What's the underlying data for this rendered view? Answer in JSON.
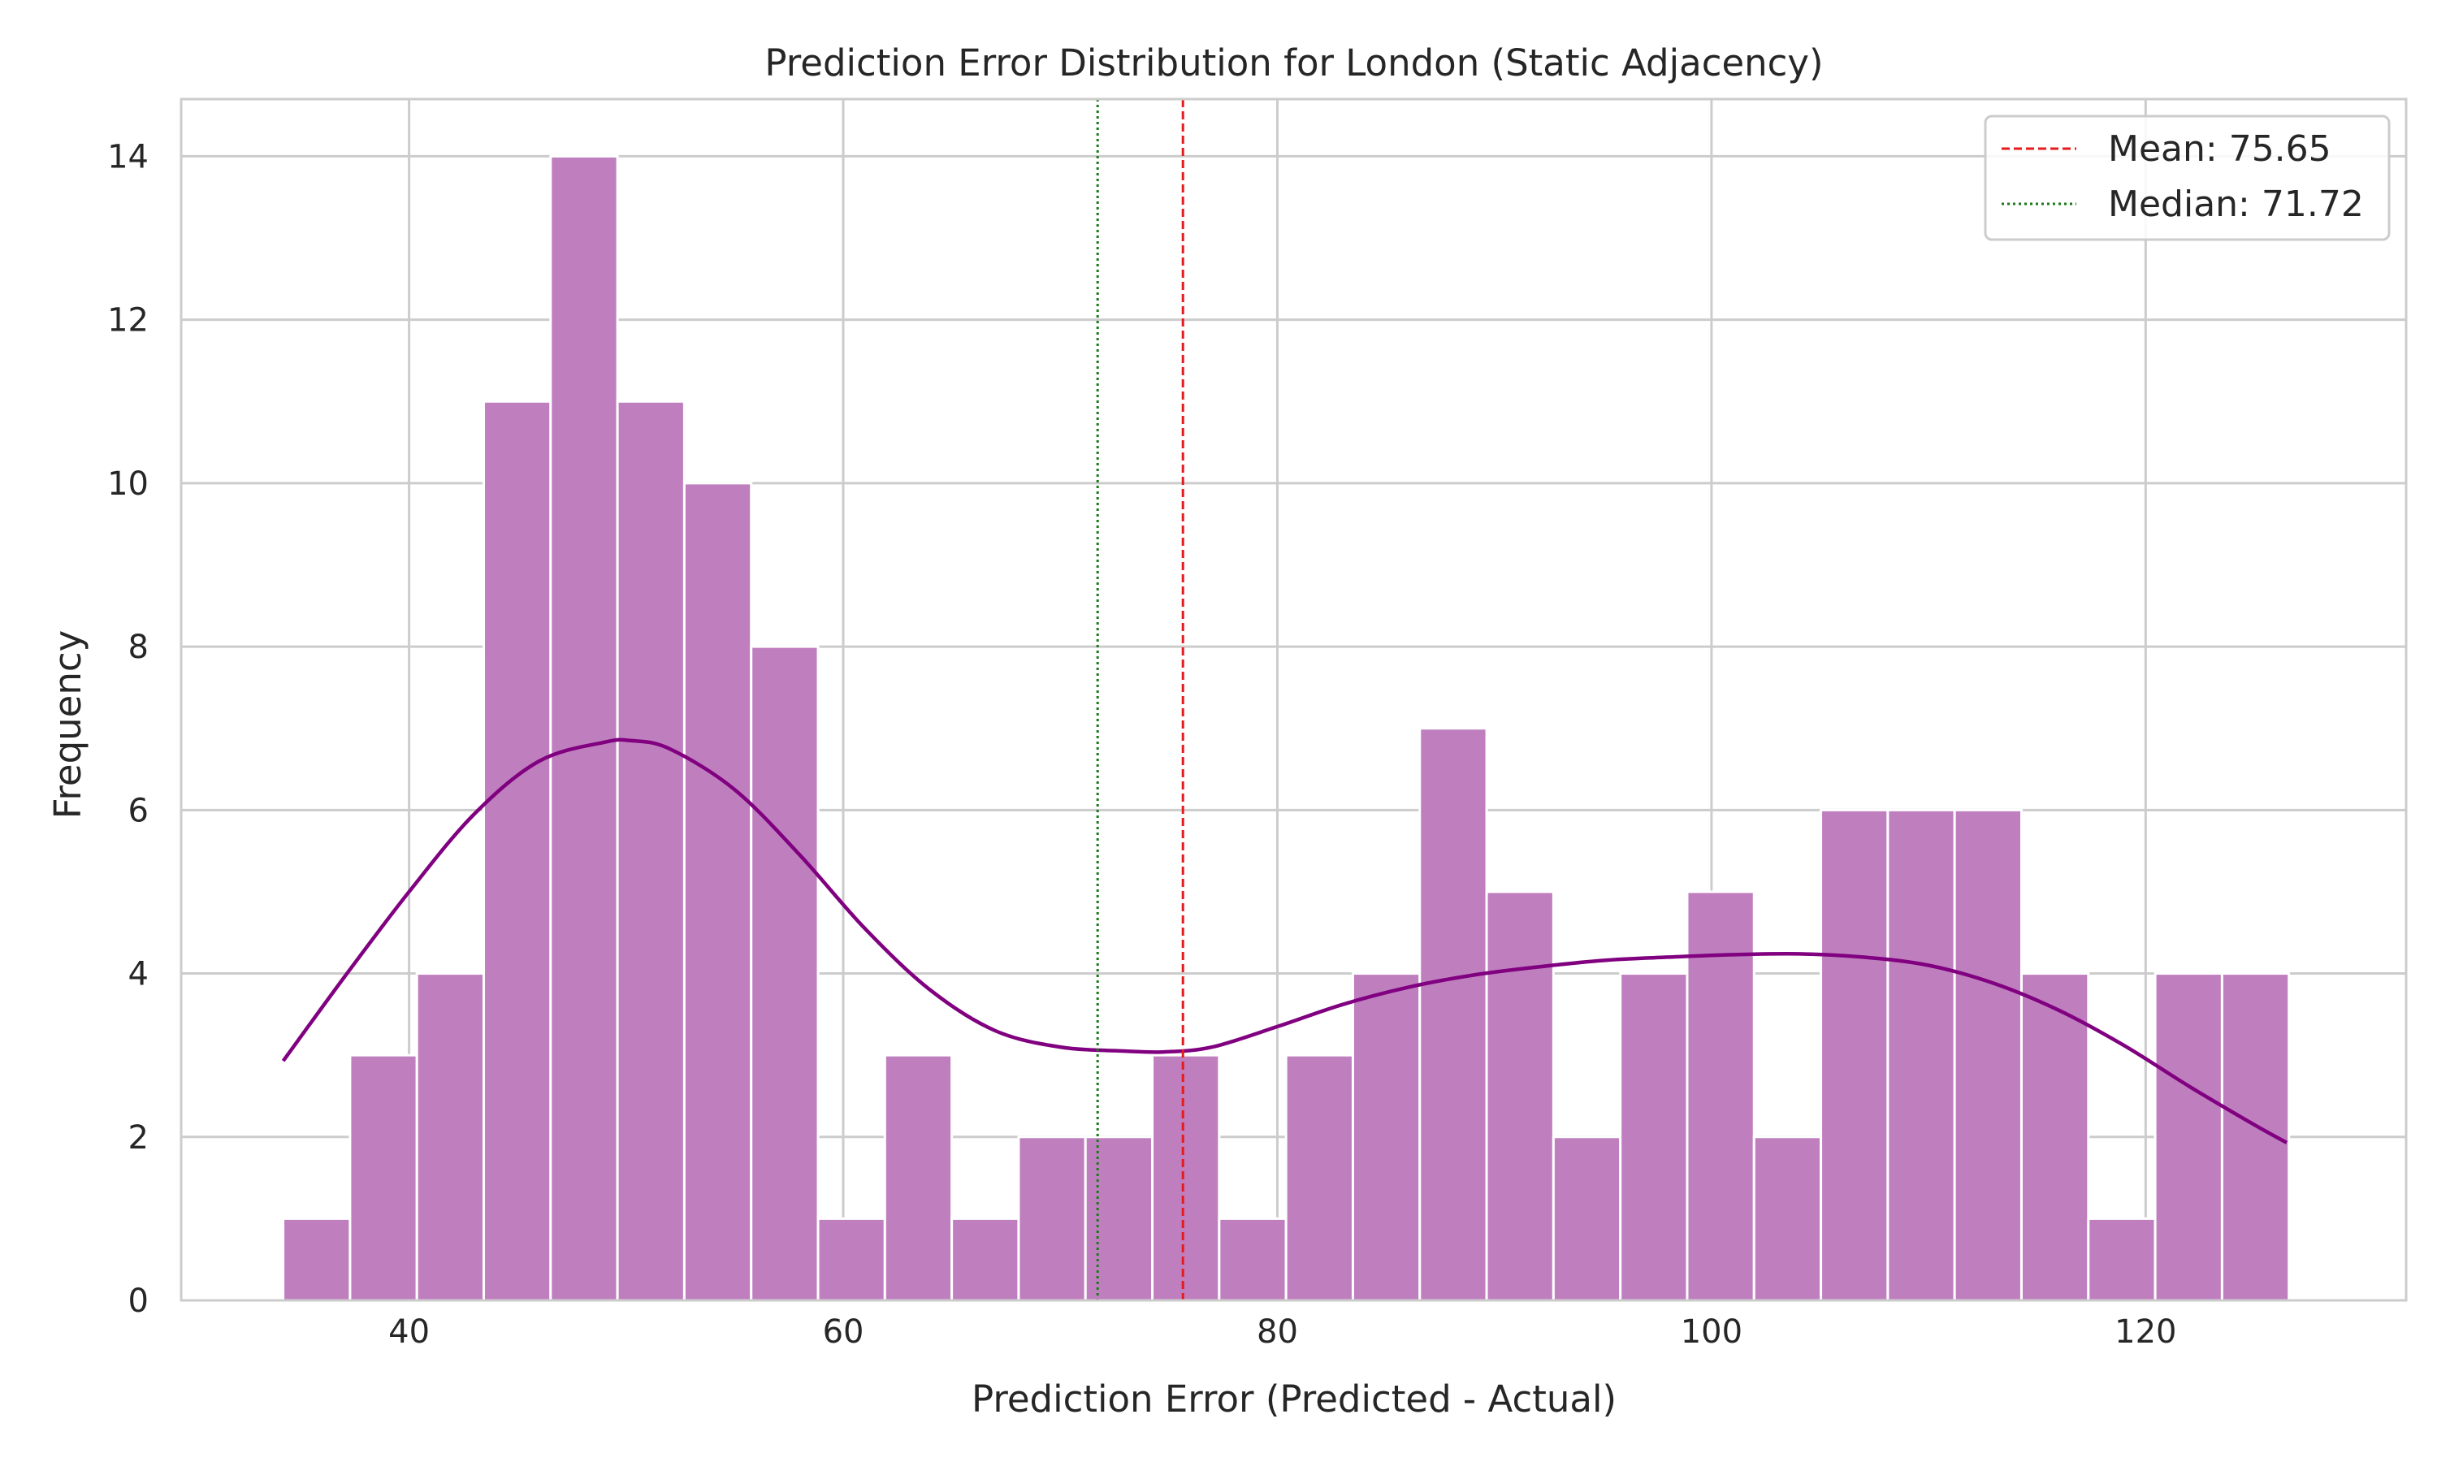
{
  "chart_data": {
    "type": "histogram",
    "title": "Prediction Error Distribution for London (Static Adjacency)",
    "xlabel": "Prediction Error (Predicted - Actual)",
    "ylabel": "Frequency",
    "xlim": [
      29.5,
      132.0
    ],
    "ylim": [
      0,
      14.7
    ],
    "xticks": [
      40,
      60,
      80,
      100,
      120
    ],
    "yticks": [
      0,
      2,
      4,
      6,
      8,
      10,
      12,
      14
    ],
    "bin_start": 34.2,
    "bin_width": 3.08,
    "counts": [
      1,
      3,
      4,
      11,
      14,
      11,
      10,
      8,
      1,
      3,
      1,
      2,
      2,
      3,
      1,
      3,
      4,
      7,
      5,
      2,
      4,
      5,
      2,
      6,
      6,
      6,
      4,
      1,
      4,
      4
    ],
    "kde": {
      "x": [
        34.2,
        37,
        40,
        43,
        46,
        49,
        50.2,
        52,
        55,
        58,
        61,
        64,
        67,
        70,
        73,
        74.8,
        77,
        80,
        83,
        86,
        89,
        92,
        95,
        98,
        101,
        104,
        107,
        110,
        113,
        116,
        119,
        122,
        125,
        126.5
      ],
      "y": [
        2.93,
        3.95,
        5.0,
        5.95,
        6.6,
        6.83,
        6.85,
        6.75,
        6.25,
        5.45,
        4.55,
        3.8,
        3.3,
        3.1,
        3.05,
        3.04,
        3.1,
        3.35,
        3.62,
        3.83,
        3.98,
        4.08,
        4.16,
        4.2,
        4.23,
        4.24,
        4.2,
        4.1,
        3.88,
        3.55,
        3.12,
        2.62,
        2.15,
        1.93
      ]
    },
    "lines": [
      {
        "label": "Mean: 75.65",
        "value": 75.65,
        "color": "#e41a1c",
        "style": "dashed"
      },
      {
        "label": "Median: 71.72",
        "value": 71.72,
        "color": "#1a7a1a",
        "style": "dotted"
      }
    ],
    "colors": {
      "bar_fill": "#bf7fbf",
      "kde_line": "#800080",
      "grid": "#cccccc",
      "spine": "#cccccc"
    },
    "grid": true,
    "legend_position": "top-right"
  }
}
